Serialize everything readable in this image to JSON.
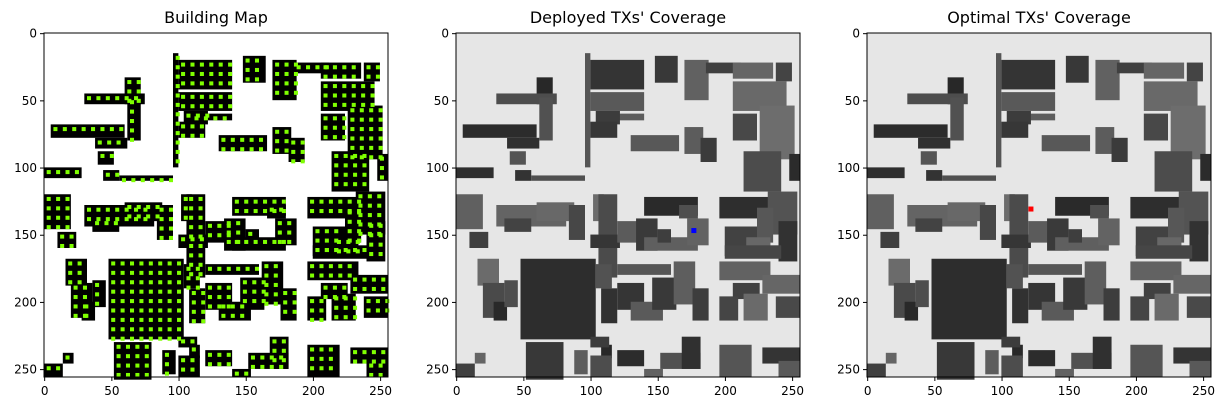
{
  "chart_data": [
    {
      "type": "heatmap",
      "title": "Building Map",
      "xlabel": "",
      "ylabel": "",
      "xlim": [
        0,
        255
      ],
      "ylim": [
        255,
        0
      ],
      "xticks": [
        0,
        50,
        100,
        150,
        200,
        250
      ],
      "yticks": [
        0,
        50,
        100,
        150,
        200,
        250
      ],
      "grid": false,
      "background_color": "#ffffff",
      "building_color": "#000000",
      "marker_color": "#7fff00"
    },
    {
      "type": "heatmap",
      "title": "Deployed TXs' Coverage",
      "xlabel": "",
      "ylabel": "",
      "xlim": [
        0,
        255
      ],
      "ylim": [
        255,
        0
      ],
      "xticks": [
        0,
        50,
        100,
        150,
        200,
        250
      ],
      "yticks": [
        0,
        50,
        100,
        150,
        200,
        250
      ],
      "grid": false,
      "background_color": "#e6e6e6",
      "building_color": "#3a3a3a",
      "tx_points": [
        {
          "x": 177,
          "y": 147,
          "color": "#0000ff"
        }
      ]
    },
    {
      "type": "heatmap",
      "title": "Optimal TXs' Coverage",
      "xlabel": "",
      "ylabel": "",
      "xlim": [
        0,
        255
      ],
      "ylim": [
        255,
        0
      ],
      "xticks": [
        0,
        50,
        100,
        150,
        200,
        250
      ],
      "yticks": [
        0,
        50,
        100,
        150,
        200,
        250
      ],
      "grid": false,
      "background_color": "#e6e6e6",
      "building_color": "#3a3a3a",
      "tx_points": [
        {
          "x": 122,
          "y": 131,
          "color": "#ff0000"
        }
      ]
    }
  ]
}
